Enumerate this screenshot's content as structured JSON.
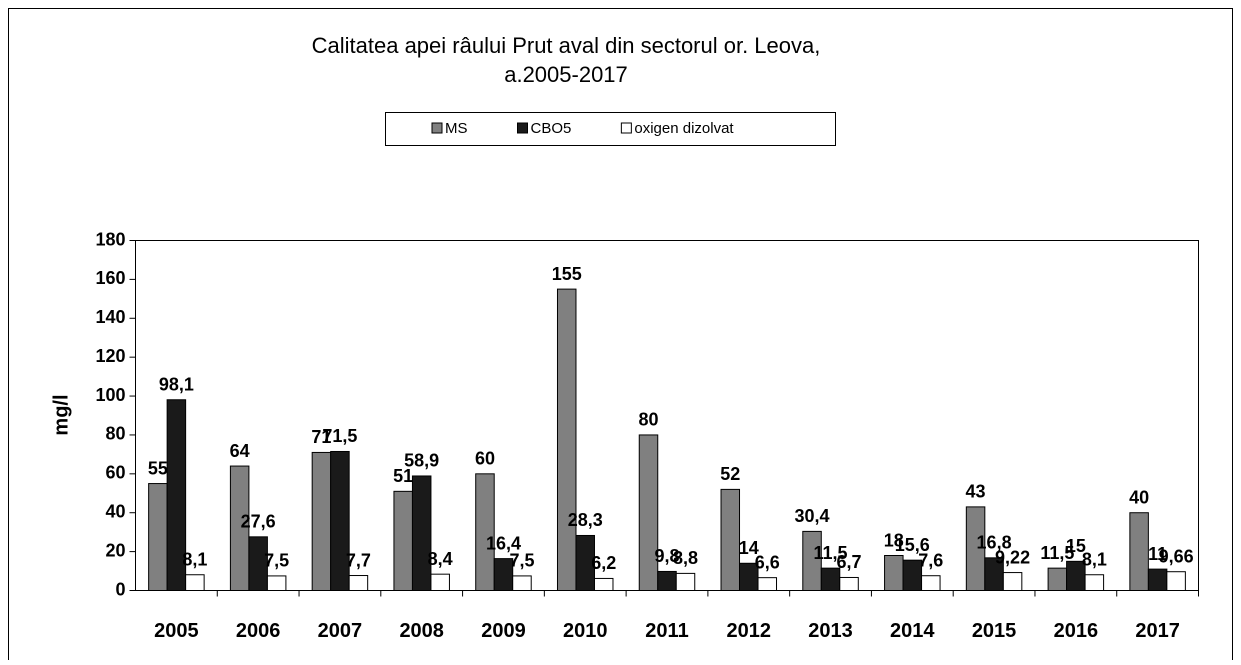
{
  "chart_data": {
    "type": "bar",
    "title": "Calitatea apei râului Prut aval din sectorul or. Leova,",
    "subtitle": "a.2005-2017",
    "y_label": "mg/l",
    "categories": [
      "2005",
      "2006",
      "2007",
      "2008",
      "2009",
      "2010",
      "2011",
      "2012",
      "2013",
      "2014",
      "2015",
      "2016",
      "2017"
    ],
    "series": [
      {
        "name": "MS",
        "color": "#808080",
        "values": [
          55,
          64,
          71,
          51,
          60,
          155,
          80,
          52,
          30.4,
          18,
          43,
          11.5,
          40
        ],
        "value_labels": [
          "55",
          "64",
          "71",
          "51",
          "60",
          "155",
          "80",
          "52",
          "30,4",
          "18",
          "43",
          "11,5",
          "40"
        ]
      },
      {
        "name": "CBO5",
        "color": "#1a1a1a",
        "values": [
          98.1,
          27.6,
          71.5,
          58.9,
          16.4,
          28.3,
          9.8,
          14,
          11.5,
          15.6,
          16.8,
          15,
          11
        ],
        "value_labels": [
          "98,1",
          "27,6",
          "71,5",
          "58,9",
          "16,4",
          "28,3",
          "9,8",
          "14",
          "11,5",
          "15,6",
          "16,8",
          "15",
          "11"
        ]
      },
      {
        "name": "oxigen dizolvat",
        "color": "#ffffff",
        "values": [
          8.1,
          7.5,
          7.7,
          8.4,
          7.5,
          6.2,
          8.8,
          6.6,
          6.7,
          7.6,
          9.22,
          8.1,
          9.66
        ],
        "value_labels": [
          "8,1",
          "7,5",
          "7,7",
          "8,4",
          "7,5",
          "6,2",
          "8,8",
          "6,6",
          "6,7",
          "7,6",
          "9,22",
          "8,1",
          "9,66"
        ]
      }
    ],
    "ylim": [
      0,
      180
    ],
    "yticks": [
      0,
      20,
      40,
      60,
      80,
      100,
      120,
      140,
      160,
      180
    ],
    "legend": "top",
    "grid": false
  }
}
